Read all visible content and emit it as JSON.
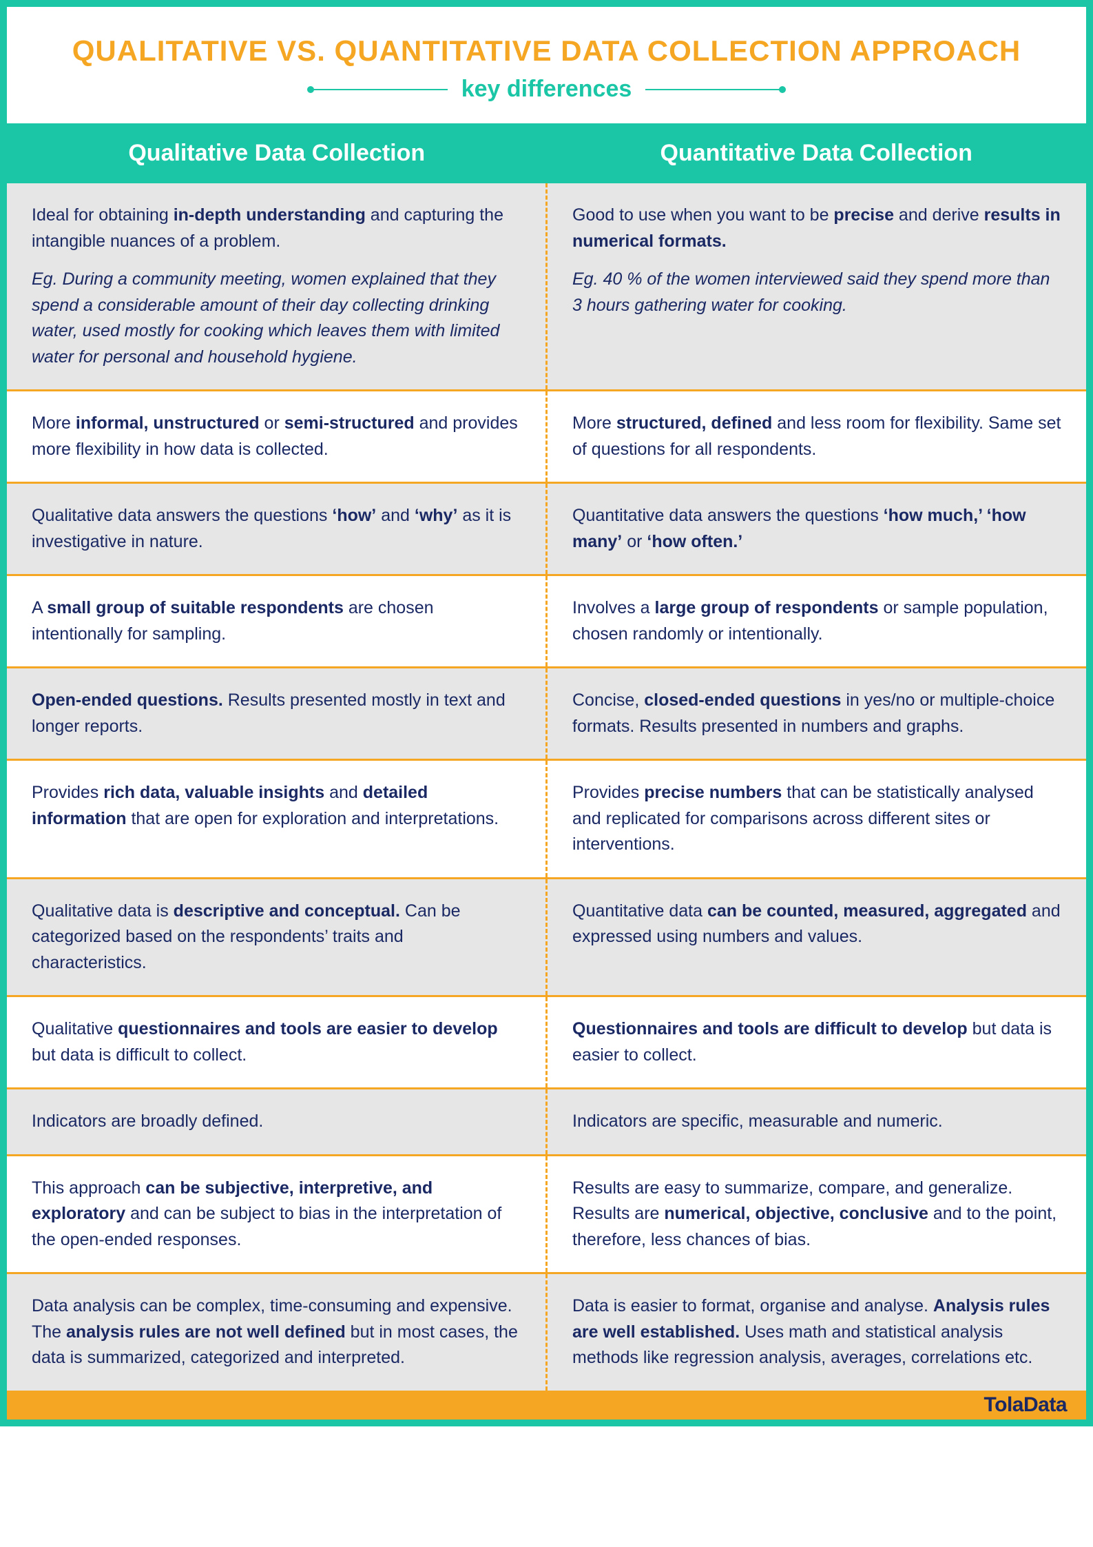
{
  "colors": {
    "frame_teal": "#1bc6a6",
    "title_orange": "#f5a623",
    "subtitle_teal": "#1bc6a6",
    "rule_orange": "#f5a623",
    "row_alt_bg": "#e6e6e6",
    "row_bg": "#ffffff",
    "text_navy": "#1a2864",
    "header_text": "#ffffff",
    "footer_bg": "#f5a623"
  },
  "typography": {
    "title_fontsize": 42,
    "subtitle_fontsize": 34,
    "col_header_fontsize": 34,
    "body_fontsize": 25,
    "footer_brand_fontsize": 30
  },
  "header": {
    "title": "QUALITATIVE VS. QUANTITATIVE DATA COLLECTION APPROACH",
    "subtitle": "key differences"
  },
  "columns": {
    "left": "Qualitative Data Collection",
    "right": "Quantitative Data Collection"
  },
  "rows": [
    {
      "bg": "#e6e6e6",
      "left": [
        {
          "style": "normal",
          "segments": [
            {
              "t": "Ideal for obtaining "
            },
            {
              "t": "in-depth understanding",
              "b": true
            },
            {
              "t": " and capturing the intangible nuances of a problem."
            }
          ]
        },
        {
          "style": "italic",
          "segments": [
            {
              "t": "Eg. During a community meeting, women explained that they spend a considerable amount of their day collecting drinking water, used mostly for cooking which leaves them with limited water for personal and household hygiene."
            }
          ]
        }
      ],
      "right": [
        {
          "style": "normal",
          "segments": [
            {
              "t": "Good to use when you want to be "
            },
            {
              "t": "precise",
              "b": true
            },
            {
              "t": " and derive "
            },
            {
              "t": "results in numerical formats.",
              "b": true
            }
          ]
        },
        {
          "style": "italic",
          "segments": [
            {
              "t": "Eg. 40 % of the women interviewed said they spend more than 3 hours gathering water for cooking."
            }
          ]
        }
      ]
    },
    {
      "bg": "#ffffff",
      "left": [
        {
          "style": "normal",
          "segments": [
            {
              "t": "More "
            },
            {
              "t": "informal, unstructured",
              "b": true
            },
            {
              "t": " or "
            },
            {
              "t": "semi-structured",
              "b": true
            },
            {
              "t": " and provides more flexibility in how data is collected."
            }
          ]
        }
      ],
      "right": [
        {
          "style": "normal",
          "segments": [
            {
              "t": "More "
            },
            {
              "t": "structured, defined",
              "b": true
            },
            {
              "t": " and less room for flexibility. Same set of questions for all respondents."
            }
          ]
        }
      ]
    },
    {
      "bg": "#e6e6e6",
      "left": [
        {
          "style": "normal",
          "segments": [
            {
              "t": "Qualitative data answers the questions "
            },
            {
              "t": "‘how’",
              "b": true
            },
            {
              "t": " and "
            },
            {
              "t": "‘why’",
              "b": true
            },
            {
              "t": " as it is investigative in nature."
            }
          ]
        }
      ],
      "right": [
        {
          "style": "normal",
          "segments": [
            {
              "t": "Quantitative data answers the questions "
            },
            {
              "t": "‘how much,’ ‘how many’",
              "b": true
            },
            {
              "t": " or "
            },
            {
              "t": "‘how often.’",
              "b": true
            }
          ]
        }
      ]
    },
    {
      "bg": "#ffffff",
      "left": [
        {
          "style": "normal",
          "segments": [
            {
              "t": "A "
            },
            {
              "t": "small group of suitable respondents",
              "b": true
            },
            {
              "t": " are chosen intentionally for sampling."
            }
          ]
        }
      ],
      "right": [
        {
          "style": "normal",
          "segments": [
            {
              "t": "Involves a "
            },
            {
              "t": "large group of respondents",
              "b": true
            },
            {
              "t": " or sample population, chosen randomly or intentionally."
            }
          ]
        }
      ]
    },
    {
      "bg": "#e6e6e6",
      "left": [
        {
          "style": "normal",
          "segments": [
            {
              "t": "Open-ended questions.",
              "b": true
            },
            {
              "t": " Results presented mostly in text and longer reports."
            }
          ]
        }
      ],
      "right": [
        {
          "style": "normal",
          "segments": [
            {
              "t": "Concise, "
            },
            {
              "t": "closed-ended questions",
              "b": true
            },
            {
              "t": " in yes/no or multiple-choice formats. Results presented in numbers and graphs."
            }
          ]
        }
      ]
    },
    {
      "bg": "#ffffff",
      "left": [
        {
          "style": "normal",
          "segments": [
            {
              "t": "Provides "
            },
            {
              "t": "rich data, valuable insights",
              "b": true
            },
            {
              "t": " and "
            },
            {
              "t": "detailed information",
              "b": true
            },
            {
              "t": " that are open for exploration and interpretations."
            }
          ]
        }
      ],
      "right": [
        {
          "style": "normal",
          "segments": [
            {
              "t": "Provides "
            },
            {
              "t": "precise numbers",
              "b": true
            },
            {
              "t": " that can be statistically analysed and replicated for comparisons across different sites or interventions."
            }
          ]
        }
      ]
    },
    {
      "bg": "#e6e6e6",
      "left": [
        {
          "style": "normal",
          "segments": [
            {
              "t": "Qualitative data is "
            },
            {
              "t": "descriptive and conceptual.",
              "b": true
            },
            {
              "t": " Can be categorized based on the respondents’ traits and characteristics."
            }
          ]
        }
      ],
      "right": [
        {
          "style": "normal",
          "segments": [
            {
              "t": "Quantitative data "
            },
            {
              "t": "can be counted, measured, aggregated",
              "b": true
            },
            {
              "t": " and expressed using numbers and values."
            }
          ]
        }
      ]
    },
    {
      "bg": "#ffffff",
      "left": [
        {
          "style": "normal",
          "segments": [
            {
              "t": "Qualitative "
            },
            {
              "t": "questionnaires and tools are easier to develop",
              "b": true
            },
            {
              "t": " but data is difficult to collect."
            }
          ]
        }
      ],
      "right": [
        {
          "style": "normal",
          "segments": [
            {
              "t": "Questionnaires and tools are difficult to develop",
              "b": true
            },
            {
              "t": " but data is easier to collect."
            }
          ]
        }
      ]
    },
    {
      "bg": "#e6e6e6",
      "left": [
        {
          "style": "normal",
          "segments": [
            {
              "t": "Indicators are broadly defined."
            }
          ]
        }
      ],
      "right": [
        {
          "style": "normal",
          "segments": [
            {
              "t": "Indicators are specific, measurable and numeric."
            }
          ]
        }
      ]
    },
    {
      "bg": "#ffffff",
      "left": [
        {
          "style": "normal",
          "segments": [
            {
              "t": "This approach "
            },
            {
              "t": "can be subjective, interpretive, and exploratory",
              "b": true
            },
            {
              "t": " and can be subject to bias in the interpretation of the open-ended responses."
            }
          ]
        }
      ],
      "right": [
        {
          "style": "normal",
          "segments": [
            {
              "t": "Results are easy to summarize, compare, and generalize. Results are "
            },
            {
              "t": "numerical, objective, conclusive",
              "b": true
            },
            {
              "t": " and to the point, therefore, less chances of bias."
            }
          ]
        }
      ]
    },
    {
      "bg": "#e6e6e6",
      "left": [
        {
          "style": "normal",
          "segments": [
            {
              "t": "Data analysis can be complex, time-consuming and expensive. The "
            },
            {
              "t": "analysis rules are not well defined",
              "b": true
            },
            {
              "t": " but in most cases, the data is summarized, categorized and interpreted."
            }
          ]
        }
      ],
      "right": [
        {
          "style": "normal",
          "segments": [
            {
              "t": "Data is easier to format, organise and analyse. "
            },
            {
              "t": "Analysis rules are well established.",
              "b": true
            },
            {
              "t": " Uses math and statistical analysis methods like regression analysis, averages, correlations etc."
            }
          ]
        }
      ]
    }
  ],
  "footer": {
    "brand": "TolaData"
  }
}
